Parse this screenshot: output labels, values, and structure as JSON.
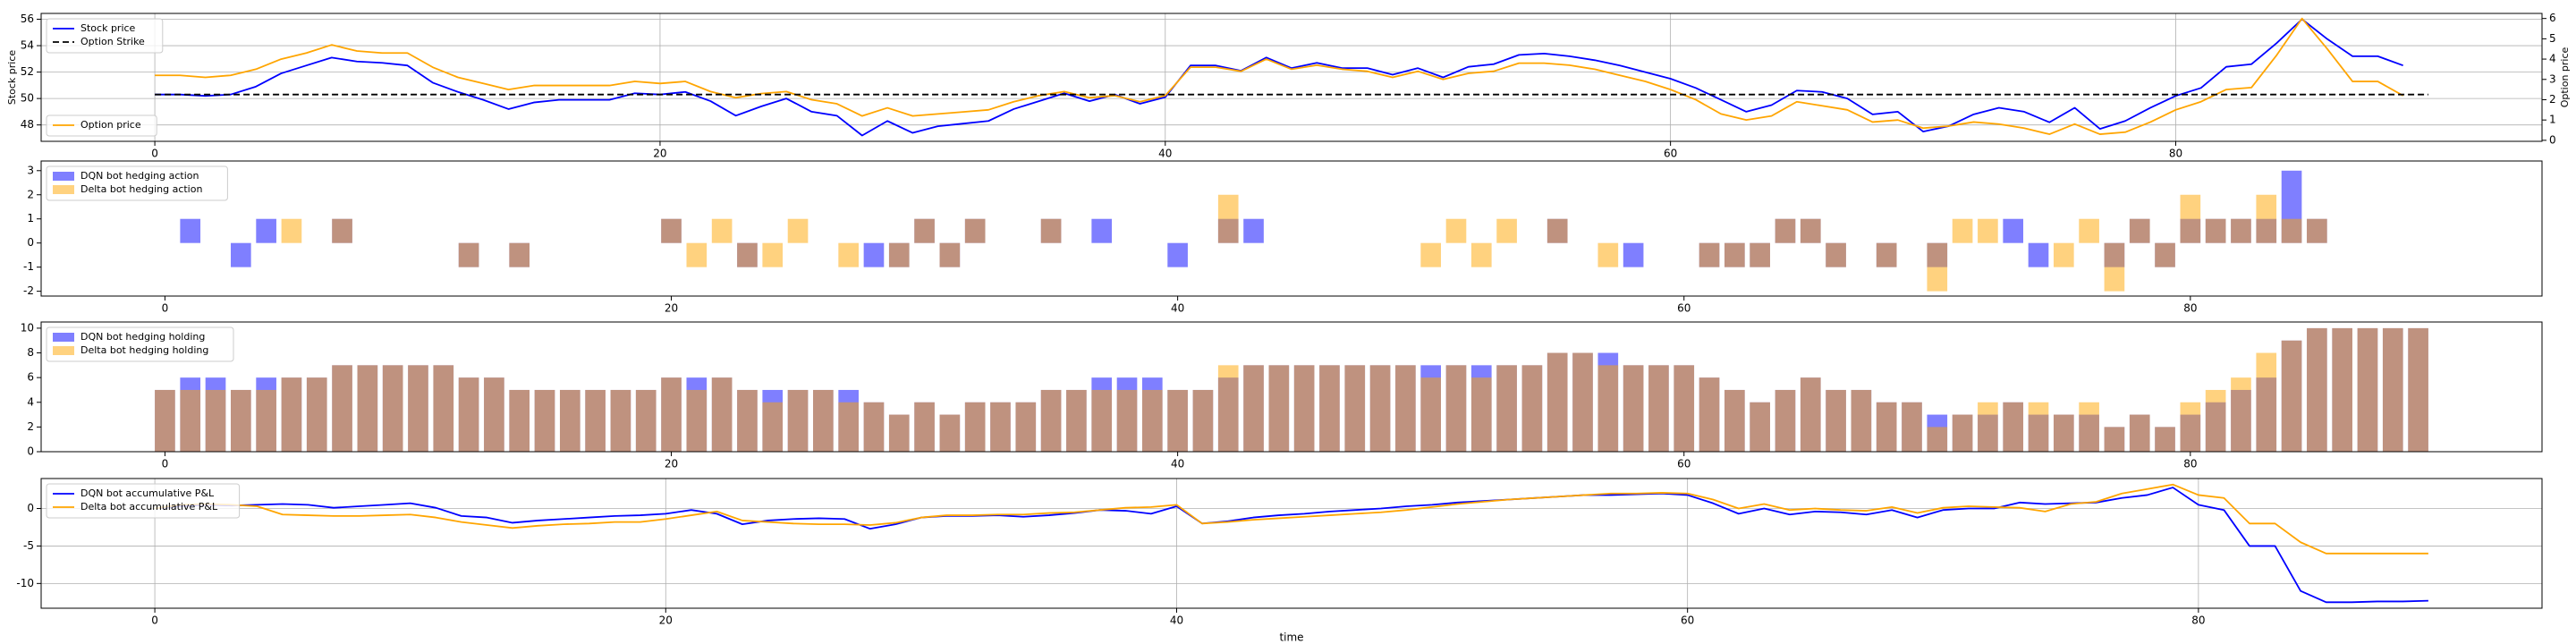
{
  "chart_data": [
    {
      "type": "line",
      "x": [
        0,
        1,
        2,
        3,
        4,
        5,
        6,
        7,
        8,
        9,
        10,
        11,
        12,
        13,
        14,
        15,
        16,
        17,
        18,
        19,
        20,
        21,
        22,
        23,
        24,
        25,
        26,
        27,
        28,
        29,
        30,
        31,
        32,
        33,
        34,
        35,
        36,
        37,
        38,
        39,
        40,
        41,
        42,
        43,
        44,
        45,
        46,
        47,
        48,
        49,
        50,
        51,
        52,
        53,
        54,
        55,
        56,
        57,
        58,
        59,
        60,
        61,
        62,
        63,
        64,
        65,
        66,
        67,
        68,
        69,
        70,
        71,
        72,
        73,
        74,
        75,
        76,
        77,
        78,
        79,
        80,
        81,
        82,
        83,
        84,
        85,
        86,
        87,
        88,
        89
      ],
      "series": [
        {
          "name": "Stock price",
          "color": "#0000ff",
          "values": [
            50.3,
            50.3,
            50.2,
            50.3,
            50.9,
            51.9,
            52.5,
            53.1,
            52.8,
            52.7,
            52.5,
            51.2,
            50.5,
            49.9,
            49.2,
            49.7,
            49.9,
            49.9,
            49.9,
            50.4,
            50.3,
            50.5,
            49.8,
            48.7,
            49.4,
            50,
            49,
            48.7,
            47.2,
            48.3,
            47.4,
            47.9,
            48.1,
            48.3,
            49.2,
            49.8,
            50.4,
            49.8,
            50.3,
            49.6,
            50.1,
            52.5,
            52.5,
            52.1,
            53.1,
            52.3,
            52.7,
            52.3,
            52.3,
            51.8,
            52.3,
            51.6,
            52.4,
            52.6,
            53.3,
            53.4,
            53.2,
            52.9,
            52.5,
            52,
            51.5,
            50.8,
            49.9,
            49,
            49.5,
            50.6,
            50.5,
            50,
            48.8,
            49,
            47.5,
            47.9,
            48.8,
            49.3,
            49,
            48.2,
            49.3,
            47.7,
            48.3,
            49.3,
            50.2,
            50.8,
            52.4,
            52.6,
            54.2,
            56,
            54.5,
            53.2,
            53.2,
            52.5
          ]
        },
        {
          "name": "Option price",
          "color": "#ffa500",
          "axis": "y2",
          "values": [
            3.2,
            3.2,
            3.1,
            3.2,
            3.5,
            4,
            4.3,
            4.7,
            4.4,
            4.3,
            4.3,
            3.6,
            3.1,
            2.8,
            2.5,
            2.7,
            2.7,
            2.7,
            2.7,
            2.9,
            2.8,
            2.9,
            2.4,
            2.1,
            2.3,
            2.4,
            2,
            1.8,
            1.2,
            1.6,
            1.2,
            1.3,
            1.4,
            1.5,
            1.9,
            2.2,
            2.4,
            2.1,
            2.2,
            1.9,
            2.2,
            3.6,
            3.6,
            3.4,
            4,
            3.5,
            3.7,
            3.5,
            3.4,
            3.1,
            3.4,
            3,
            3.3,
            3.4,
            3.8,
            3.8,
            3.7,
            3.5,
            3.2,
            2.9,
            2.5,
            2,
            1.3,
            1,
            1.2,
            1.9,
            1.7,
            1.5,
            0.9,
            1,
            0.6,
            0.7,
            0.9,
            0.8,
            0.6,
            0.3,
            0.8,
            0.3,
            0.4,
            0.9,
            1.5,
            1.9,
            2.5,
            2.6,
            4.2,
            6,
            4.5,
            2.9,
            2.9,
            2.2
          ]
        }
      ],
      "hlines": [
        {
          "name": "Option Strike",
          "color": "#000000",
          "linestyle": "dashed",
          "value": 50.3,
          "xmin": 0,
          "xmax": 90
        }
      ],
      "ylabel": "Stock price",
      "y2label": "Option price",
      "xlim": [
        -4.5,
        94.5
      ],
      "xticks": [
        0,
        20,
        40,
        60,
        80
      ],
      "ylim": [
        46.76,
        56.44
      ],
      "yticks": [
        48,
        50,
        52,
        54,
        56
      ],
      "y2lim": [
        -0.05,
        6.25
      ],
      "y2ticks": [
        0,
        1,
        2,
        3,
        4,
        5,
        6
      ],
      "grid": true,
      "legend": "upper left",
      "y2_legend": "lower left"
    },
    {
      "type": "bar",
      "x": [
        0,
        1,
        2,
        3,
        4,
        5,
        6,
        7,
        8,
        9,
        10,
        11,
        12,
        13,
        14,
        15,
        16,
        17,
        18,
        19,
        20,
        21,
        22,
        23,
        24,
        25,
        26,
        27,
        28,
        29,
        30,
        31,
        32,
        33,
        34,
        35,
        36,
        37,
        38,
        39,
        40,
        41,
        42,
        43,
        44,
        45,
        46,
        47,
        48,
        49,
        50,
        51,
        52,
        53,
        54,
        55,
        56,
        57,
        58,
        59,
        60,
        61,
        62,
        63,
        64,
        65,
        66,
        67,
        68,
        69,
        70,
        71,
        72,
        73,
        74,
        75,
        76,
        77,
        78,
        79,
        80,
        81,
        82,
        83,
        84,
        85,
        86,
        87,
        88,
        89
      ],
      "series": [
        {
          "name": "DQN bot hedging action",
          "color": "#0000ff",
          "values": [
            0,
            1,
            0,
            -1,
            1,
            0,
            0,
            1,
            0,
            0,
            0,
            0,
            -1,
            0,
            -1,
            0,
            0,
            0,
            0,
            0,
            1,
            0,
            0,
            -1,
            0,
            0,
            0,
            0,
            -1,
            -1,
            1,
            -1,
            1,
            0,
            0,
            1,
            0,
            1,
            0,
            0,
            -1,
            0,
            1,
            1,
            0,
            0,
            0,
            0,
            0,
            0,
            0,
            0,
            0,
            0,
            0,
            1,
            0,
            0,
            -1,
            0,
            0,
            -1,
            -1,
            -1,
            1,
            1,
            -1,
            0,
            -1,
            0,
            -1,
            0,
            0,
            1,
            -1,
            0,
            0,
            -1,
            1,
            -1,
            1,
            1,
            1,
            1,
            3,
            1,
            0,
            0,
            0,
            0
          ]
        },
        {
          "name": "Delta bot hedging action",
          "color": "#ffa500",
          "values": [
            0,
            0,
            0,
            0,
            0,
            1,
            0,
            1,
            0,
            0,
            0,
            0,
            -1,
            0,
            -1,
            0,
            0,
            0,
            0,
            0,
            1,
            -1,
            1,
            -1,
            -1,
            1,
            0,
            -1,
            0,
            -1,
            1,
            -1,
            1,
            0,
            0,
            1,
            0,
            0,
            0,
            0,
            0,
            0,
            2,
            0,
            0,
            0,
            0,
            0,
            0,
            0,
            -1,
            1,
            -1,
            1,
            0,
            1,
            0,
            -1,
            0,
            0,
            0,
            -1,
            -1,
            -1,
            1,
            1,
            -1,
            0,
            -1,
            0,
            -2,
            1,
            1,
            0,
            0,
            -1,
            1,
            -2,
            1,
            -1,
            2,
            1,
            1,
            2,
            1,
            1,
            0,
            0,
            0,
            0
          ]
        }
      ],
      "xlim": [
        -4.89,
        93.89
      ],
      "xticks": [
        0,
        20,
        40,
        60,
        80
      ],
      "ylim": [
        -2.2,
        3.4
      ],
      "yticks": [
        -2,
        -1,
        0,
        1,
        2,
        3
      ],
      "grid": false,
      "legend": "upper left"
    },
    {
      "type": "bar",
      "x": [
        0,
        1,
        2,
        3,
        4,
        5,
        6,
        7,
        8,
        9,
        10,
        11,
        12,
        13,
        14,
        15,
        16,
        17,
        18,
        19,
        20,
        21,
        22,
        23,
        24,
        25,
        26,
        27,
        28,
        29,
        30,
        31,
        32,
        33,
        34,
        35,
        36,
        37,
        38,
        39,
        40,
        41,
        42,
        43,
        44,
        45,
        46,
        47,
        48,
        49,
        50,
        51,
        52,
        53,
        54,
        55,
        56,
        57,
        58,
        59,
        60,
        61,
        62,
        63,
        64,
        65,
        66,
        67,
        68,
        69,
        70,
        71,
        72,
        73,
        74,
        75,
        76,
        77,
        78,
        79,
        80,
        81,
        82,
        83,
        84,
        85,
        86,
        87,
        88,
        89
      ],
      "series": [
        {
          "name": "DQN bot hedging holding",
          "color": "#0000ff",
          "values": [
            5,
            6,
            6,
            5,
            6,
            6,
            6,
            7,
            7,
            7,
            7,
            7,
            6,
            6,
            5,
            5,
            5,
            5,
            5,
            5,
            6,
            6,
            6,
            5,
            5,
            5,
            5,
            5,
            4,
            3,
            4,
            3,
            4,
            4,
            4,
            5,
            5,
            6,
            6,
            6,
            5,
            5,
            6,
            7,
            7,
            7,
            7,
            7,
            7,
            7,
            7,
            7,
            7,
            7,
            7,
            8,
            8,
            8,
            7,
            7,
            7,
            6,
            5,
            4,
            5,
            6,
            5,
            5,
            4,
            4,
            3,
            3,
            3,
            4,
            3,
            3,
            3,
            2,
            3,
            2,
            3,
            4,
            5,
            6,
            9,
            10,
            10,
            10,
            10,
            10
          ]
        },
        {
          "name": "Delta bot hedging holding",
          "color": "#ffa500",
          "values": [
            5,
            5,
            5,
            5,
            5,
            6,
            6,
            7,
            7,
            7,
            7,
            7,
            6,
            6,
            5,
            5,
            5,
            5,
            5,
            5,
            6,
            5,
            6,
            5,
            4,
            5,
            5,
            4,
            4,
            3,
            4,
            3,
            4,
            4,
            4,
            5,
            5,
            5,
            5,
            5,
            5,
            5,
            7,
            7,
            7,
            7,
            7,
            7,
            7,
            7,
            6,
            7,
            6,
            7,
            7,
            8,
            8,
            7,
            7,
            7,
            7,
            6,
            5,
            4,
            5,
            6,
            5,
            5,
            4,
            4,
            2,
            3,
            4,
            4,
            4,
            3,
            4,
            2,
            3,
            2,
            4,
            5,
            6,
            8,
            9,
            10,
            10,
            10,
            10,
            10
          ]
        }
      ],
      "xlim": [
        -4.89,
        93.89
      ],
      "xticks": [
        0,
        20,
        40,
        60,
        80
      ],
      "ylim": [
        0,
        10.5
      ],
      "yticks": [
        0,
        2,
        4,
        6,
        8,
        10
      ],
      "grid": false,
      "legend": "upper left"
    },
    {
      "type": "line",
      "x": [
        0,
        1,
        2,
        3,
        4,
        5,
        6,
        7,
        8,
        9,
        10,
        11,
        12,
        13,
        14,
        15,
        16,
        17,
        18,
        19,
        20,
        21,
        22,
        23,
        24,
        25,
        26,
        27,
        28,
        29,
        30,
        31,
        32,
        33,
        34,
        35,
        36,
        37,
        38,
        39,
        40,
        41,
        42,
        43,
        44,
        45,
        46,
        47,
        48,
        49,
        50,
        51,
        52,
        53,
        54,
        55,
        56,
        57,
        58,
        59,
        60,
        61,
        62,
        63,
        64,
        65,
        66,
        67,
        68,
        69,
        70,
        71,
        72,
        73,
        74,
        75,
        76,
        77,
        78,
        79,
        80,
        81,
        82,
        83,
        84,
        85,
        86,
        87,
        88,
        89
      ],
      "series": [
        {
          "name": "DQN bot accumulative P&L",
          "color": "#0000ff",
          "values": [
            0,
            0.3,
            0.5,
            0.4,
            0.5,
            0.6,
            0.5,
            0.1,
            0.3,
            0.5,
            0.7,
            0.1,
            -1,
            -1.2,
            -1.9,
            -1.6,
            -1.4,
            -1.2,
            -1,
            -0.9,
            -0.7,
            -0.2,
            -0.7,
            -2.1,
            -1.6,
            -1.4,
            -1.3,
            -1.4,
            -2.7,
            -2.1,
            -1.2,
            -1,
            -1,
            -0.9,
            -1.1,
            -0.9,
            -0.6,
            -0.2,
            -0.3,
            -0.7,
            0.3,
            -2,
            -1.7,
            -1.2,
            -0.9,
            -0.7,
            -0.4,
            -0.2,
            0,
            0.3,
            0.5,
            0.8,
            1,
            1.2,
            1.4,
            1.6,
            1.8,
            1.8,
            1.9,
            2,
            1.8,
            0.7,
            -0.7,
            0,
            -0.8,
            -0.4,
            -0.5,
            -0.8,
            -0.2,
            -1.2,
            -0.2,
            0,
            0,
            0.8,
            0.6,
            0.7,
            0.8,
            1.4,
            1.8,
            2.8,
            0.5,
            -0.2,
            -5,
            -5,
            -11,
            -12.5,
            -12.5,
            -12.4,
            -12.4,
            -12.3
          ]
        },
        {
          "name": "Delta bot accumulative P&L",
          "color": "#ffa500",
          "values": [
            0,
            0.5,
            0.6,
            0.5,
            0.3,
            -0.8,
            -0.9,
            -1,
            -1,
            -0.9,
            -0.8,
            -1.2,
            -1.8,
            -2.2,
            -2.6,
            -2.3,
            -2.1,
            -2,
            -1.8,
            -1.8,
            -1.4,
            -0.9,
            -0.4,
            -1.6,
            -1.8,
            -2,
            -2.1,
            -2.1,
            -2.2,
            -1.9,
            -1.2,
            -0.9,
            -0.9,
            -0.8,
            -0.8,
            -0.6,
            -0.5,
            -0.2,
            0.1,
            0.2,
            0.5,
            -2,
            -1.8,
            -1.5,
            -1.3,
            -1.1,
            -0.9,
            -0.7,
            -0.5,
            -0.2,
            0.2,
            0.6,
            0.9,
            1.2,
            1.4,
            1.6,
            1.8,
            2,
            2,
            2.1,
            2,
            1.2,
            0,
            0.6,
            -0.2,
            0,
            -0.2,
            -0.3,
            0.2,
            -0.6,
            0.1,
            0.3,
            0.2,
            0.1,
            -0.4,
            0.6,
            0.9,
            2,
            2.6,
            3.2,
            1.8,
            1.4,
            -2,
            -2,
            -4.5,
            -6,
            -6,
            -6,
            -6,
            -6
          ]
        }
      ],
      "xlabel": "time",
      "xlim": [
        -4.45,
        93.45
      ],
      "xticks": [
        0,
        20,
        40,
        60,
        80
      ],
      "ylim": [
        -13.3,
        4.0
      ],
      "yticks": [
        -10,
        -5,
        0
      ],
      "grid": true,
      "legend": "upper left"
    }
  ]
}
